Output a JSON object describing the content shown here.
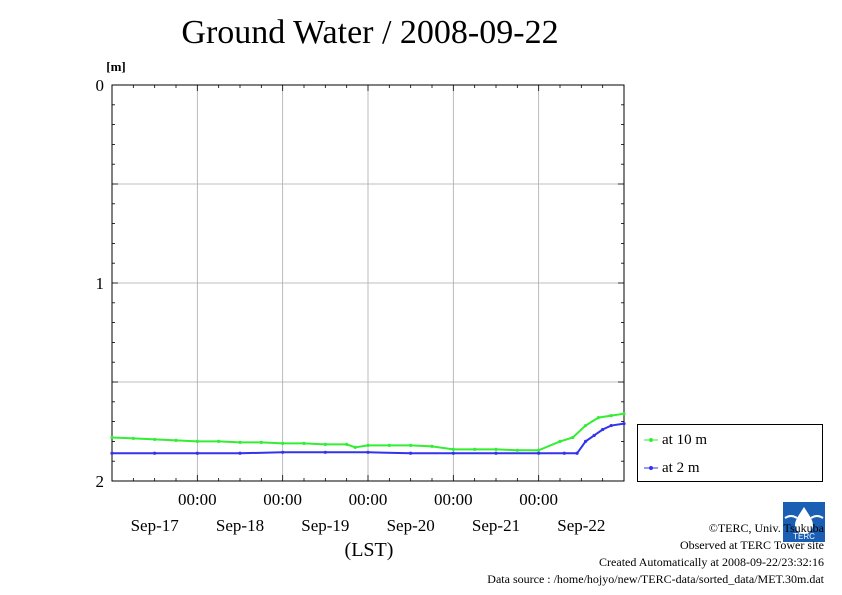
{
  "chart_data": {
    "type": "line",
    "title": "Ground Water / 2008-09-22",
    "ylabel": "[m]",
    "xlabel": "(LST)",
    "y_inverted": true,
    "ylim": [
      0,
      2
    ],
    "yticks": [
      0,
      1,
      2
    ],
    "xlim": [
      0,
      6
    ],
    "x_time_labels": [
      "00:00",
      "00:00",
      "00:00",
      "00:00",
      "00:00"
    ],
    "x_date_labels": [
      "Sep-17",
      "Sep-18",
      "Sep-19",
      "Sep-20",
      "Sep-21",
      "Sep-22"
    ],
    "grid": true,
    "legend_position": "right",
    "series": [
      {
        "name": "at 10 m",
        "color": "#33ee33",
        "x": [
          0,
          0.25,
          0.5,
          0.75,
          1.0,
          1.25,
          1.5,
          1.75,
          2.0,
          2.25,
          2.5,
          2.75,
          2.85,
          3.0,
          3.25,
          3.5,
          3.75,
          4.0,
          4.25,
          4.5,
          4.75,
          5.0,
          5.25,
          5.4,
          5.55,
          5.7,
          5.85,
          6.0
        ],
        "values": [
          1.78,
          1.785,
          1.79,
          1.795,
          1.8,
          1.8,
          1.805,
          1.805,
          1.81,
          1.81,
          1.815,
          1.815,
          1.83,
          1.82,
          1.82,
          1.82,
          1.825,
          1.84,
          1.84,
          1.84,
          1.845,
          1.845,
          1.8,
          1.78,
          1.72,
          1.68,
          1.67,
          1.66
        ]
      },
      {
        "name": "at 2 m",
        "color": "#3333ee",
        "x": [
          0,
          0.5,
          1.0,
          1.5,
          2.0,
          2.5,
          3.0,
          3.5,
          4.0,
          4.5,
          5.0,
          5.3,
          5.45,
          5.55,
          5.65,
          5.75,
          5.85,
          6.0
        ],
        "values": [
          1.86,
          1.86,
          1.86,
          1.86,
          1.855,
          1.855,
          1.855,
          1.86,
          1.86,
          1.86,
          1.86,
          1.86,
          1.86,
          1.8,
          1.77,
          1.74,
          1.72,
          1.71
        ]
      }
    ]
  },
  "credits": {
    "copyright": "©TERC, Univ. Tsukuba",
    "observed": "Observed at TERC Tower site",
    "created": "Created Automatically at 2008-09-22/23:32:16",
    "source": "Data source : /home/hojyo/new/TERC-data/sorted_data/MET.30m.dat",
    "logo_text": "TERC"
  }
}
